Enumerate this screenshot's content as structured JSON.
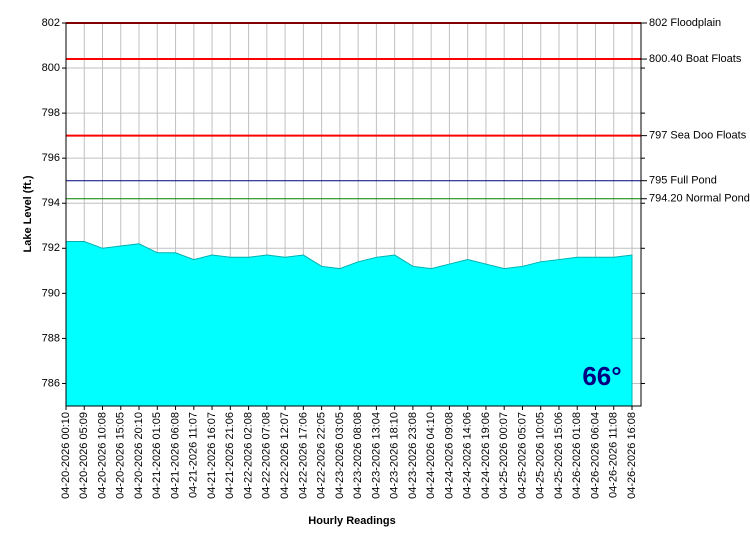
{
  "chart_data": {
    "type": "area",
    "y_label": "Lake Level (ft.)",
    "x_label": "Hourly Readings",
    "categories": [
      "04-20-2026 00:10",
      "04-20-2026 05:09",
      "04-20-2026 10:08",
      "04-20-2026 15:05",
      "04-20-2026 20:10",
      "04-21-2026 01:05",
      "04-21-2026 06:08",
      "04-21-2026 11:07",
      "04-21-2026 16:07",
      "04-21-2026 21:06",
      "04-22-2026 02:08",
      "04-22-2026 07:08",
      "04-22-2026 12:07",
      "04-22-2026 17:06",
      "04-22-2026 22:05",
      "04-23-2026 03:05",
      "04-23-2026 08:08",
      "04-23-2026 13:04",
      "04-23-2026 18:10",
      "04-23-2026 23:08",
      "04-24-2026 04:10",
      "04-24-2026 09:08",
      "04-24-2026 14:06",
      "04-24-2026 19:06",
      "04-25-2026 00:07",
      "04-25-2026 05:07",
      "04-25-2026 10:05",
      "04-25-2026 15:06",
      "04-26-2026 01:08",
      "04-26-2026 06:04",
      "04-26-2026 11:08",
      "04-26-2026 16:08"
    ],
    "values": [
      792.3,
      792.3,
      792.0,
      792.1,
      792.2,
      791.8,
      791.8,
      791.5,
      791.7,
      791.6,
      791.6,
      791.7,
      791.6,
      791.7,
      791.2,
      791.1,
      791.4,
      791.6,
      791.7,
      791.2,
      791.1,
      791.3,
      791.5,
      791.3,
      791.1,
      791.2,
      791.4,
      791.5,
      791.6,
      791.6,
      791.6,
      791.7
    ],
    "color": "#00ffff",
    "ylim": [
      785,
      802
    ],
    "yticks": [
      786,
      788,
      790,
      792,
      794,
      796,
      798,
      800,
      802
    ],
    "grid": true,
    "reference_lines": [
      {
        "value": 802,
        "label": "802 Floodplain",
        "color": "#ff0000"
      },
      {
        "value": 800.4,
        "label": "800.40 Boat Floats",
        "color": "#ff0000"
      },
      {
        "value": 797,
        "label": "797 Sea Doo Floats",
        "color": "#ff0000"
      },
      {
        "value": 795,
        "label": "795 Full Pond",
        "color": "#000080"
      },
      {
        "value": 794.2,
        "label": "794.20 Normal Pond",
        "color": "#008000"
      }
    ],
    "badge": "66°"
  }
}
